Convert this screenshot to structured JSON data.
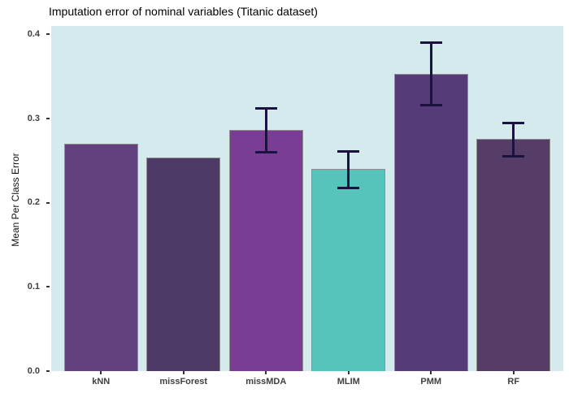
{
  "chart_data": {
    "type": "bar",
    "title": "Imputation error of nominal variables (Titanic dataset)",
    "xlabel": "",
    "ylabel": "Mean Per Class Error",
    "categories": [
      "kNN",
      "missForest",
      "missMDA",
      "MLIM",
      "PMM",
      "RF"
    ],
    "values": [
      0.27,
      0.254,
      0.287,
      0.24,
      0.353,
      0.276
    ],
    "bar_colors": [
      "#63407E",
      "#4E3A66",
      "#7A3D96",
      "#57C4BB",
      "#553C78",
      "#563D68"
    ],
    "error_bars": [
      null,
      null,
      {
        "low": 0.26,
        "high": 0.312
      },
      {
        "low": 0.218,
        "high": 0.261
      },
      {
        "low": 0.316,
        "high": 0.39
      },
      {
        "low": 0.255,
        "high": 0.295
      }
    ],
    "ytick_labels": [
      "0.0",
      "0.1",
      "0.2",
      "0.3",
      "0.4"
    ],
    "ytick_values": [
      0.0,
      0.1,
      0.2,
      0.3,
      0.4
    ],
    "ylim": [
      0,
      0.41
    ],
    "grid": false,
    "legend": false,
    "panel_bg": "#D5EAEC",
    "errorbar_color": "#1C1240",
    "bar_border_color": "#8F8F8F",
    "axis_text_color": "#404040"
  }
}
